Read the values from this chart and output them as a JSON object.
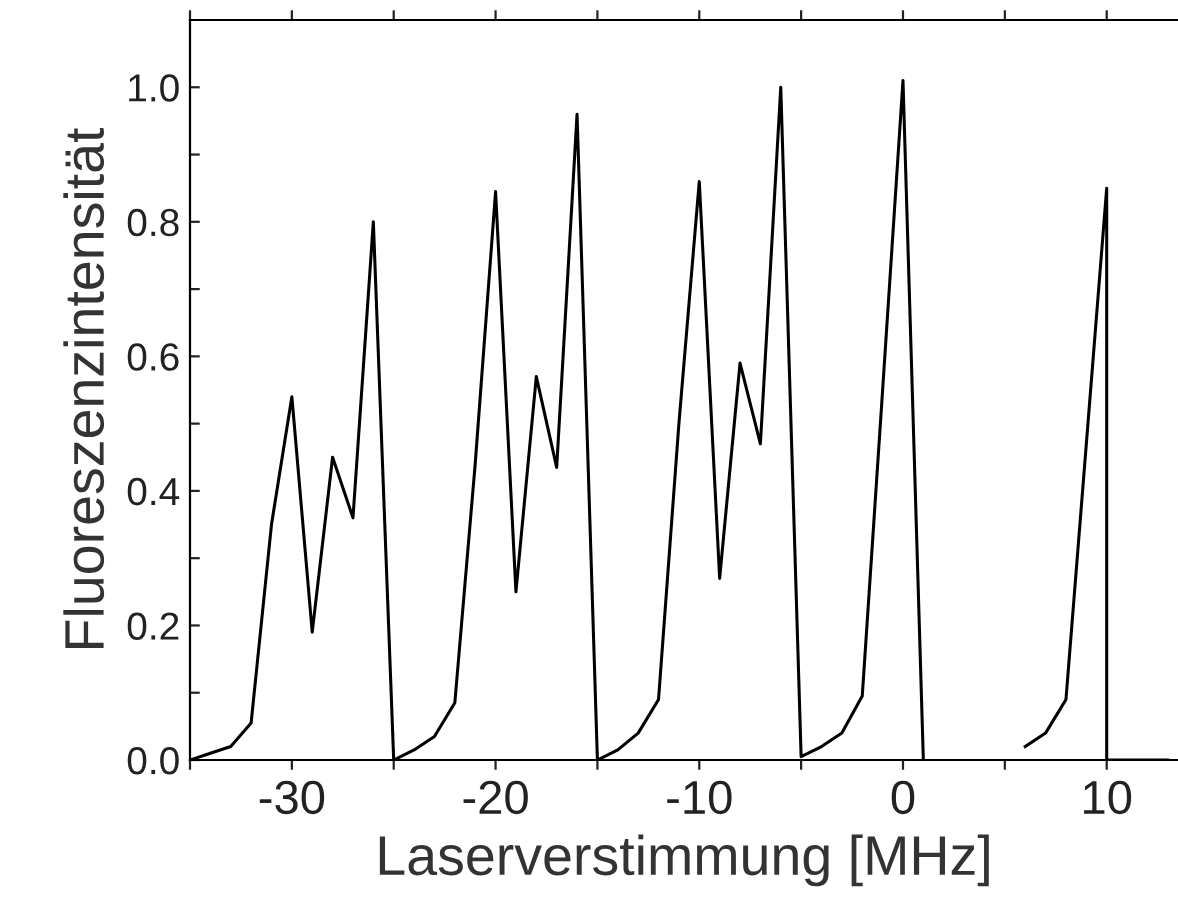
{
  "chart_data": {
    "type": "line",
    "xlabel": "Laserverstimmung [MHz]",
    "ylabel": "Fluoreszenzintensität",
    "x": [
      -35,
      -34,
      -33,
      -32,
      -31,
      -30,
      -29,
      -28,
      -27,
      -26,
      -25,
      -24,
      -23,
      -22,
      -21,
      -20,
      -19,
      -18,
      -17,
      -16,
      -15,
      -14,
      -13,
      -12,
      -11,
      -10,
      -9,
      -8,
      -7,
      -6,
      -5,
      -4,
      -3,
      -2,
      -1,
      0,
      1,
      2,
      6,
      7,
      8,
      9,
      10,
      10,
      11,
      12,
      13
    ],
    "series": [
      {
        "color": "#000000",
        "values": [
          0.0,
          0.01,
          0.02,
          0.055,
          0.35,
          0.54,
          0.19,
          0.45,
          0.36,
          0.8,
          0.0,
          0.015,
          0.035,
          0.085,
          0.44,
          0.845,
          0.25,
          0.57,
          0.435,
          0.96,
          0.0,
          0.015,
          0.04,
          0.09,
          0.5,
          0.86,
          0.27,
          0.59,
          0.47,
          1.0,
          0.005,
          0.02,
          0.04,
          0.095,
          0.55,
          1.01,
          0.0,
          null,
          0.02,
          0.04,
          0.09,
          0.47,
          0.85,
          0.0,
          0.0,
          0.0,
          0.0
        ]
      }
    ],
    "xlim": [
      -35,
      13.5
    ],
    "ylim": [
      0,
      1.1
    ],
    "xticks": [
      {
        "value": -35,
        "label": null
      },
      -30,
      {
        "value": -25,
        "label": null
      },
      -20,
      {
        "value": -15,
        "label": null
      },
      -10,
      {
        "value": -5,
        "label": null
      },
      0,
      {
        "value": 5,
        "label": null
      },
      10
    ],
    "yticks": [
      {
        "value": 0,
        "label": "0.0"
      },
      {
        "value": 0.1,
        "label": null
      },
      0.2,
      {
        "value": 0.3,
        "label": null
      },
      0.4,
      {
        "value": 0.5,
        "label": null
      },
      0.6,
      {
        "value": 0.7,
        "label": null
      },
      0.8,
      {
        "value": 0.9,
        "label": null
      },
      {
        "value": 1,
        "label": "1.0"
      }
    ],
    "grid": false,
    "legend": false,
    "marker": "none",
    "line_style": "solid"
  }
}
